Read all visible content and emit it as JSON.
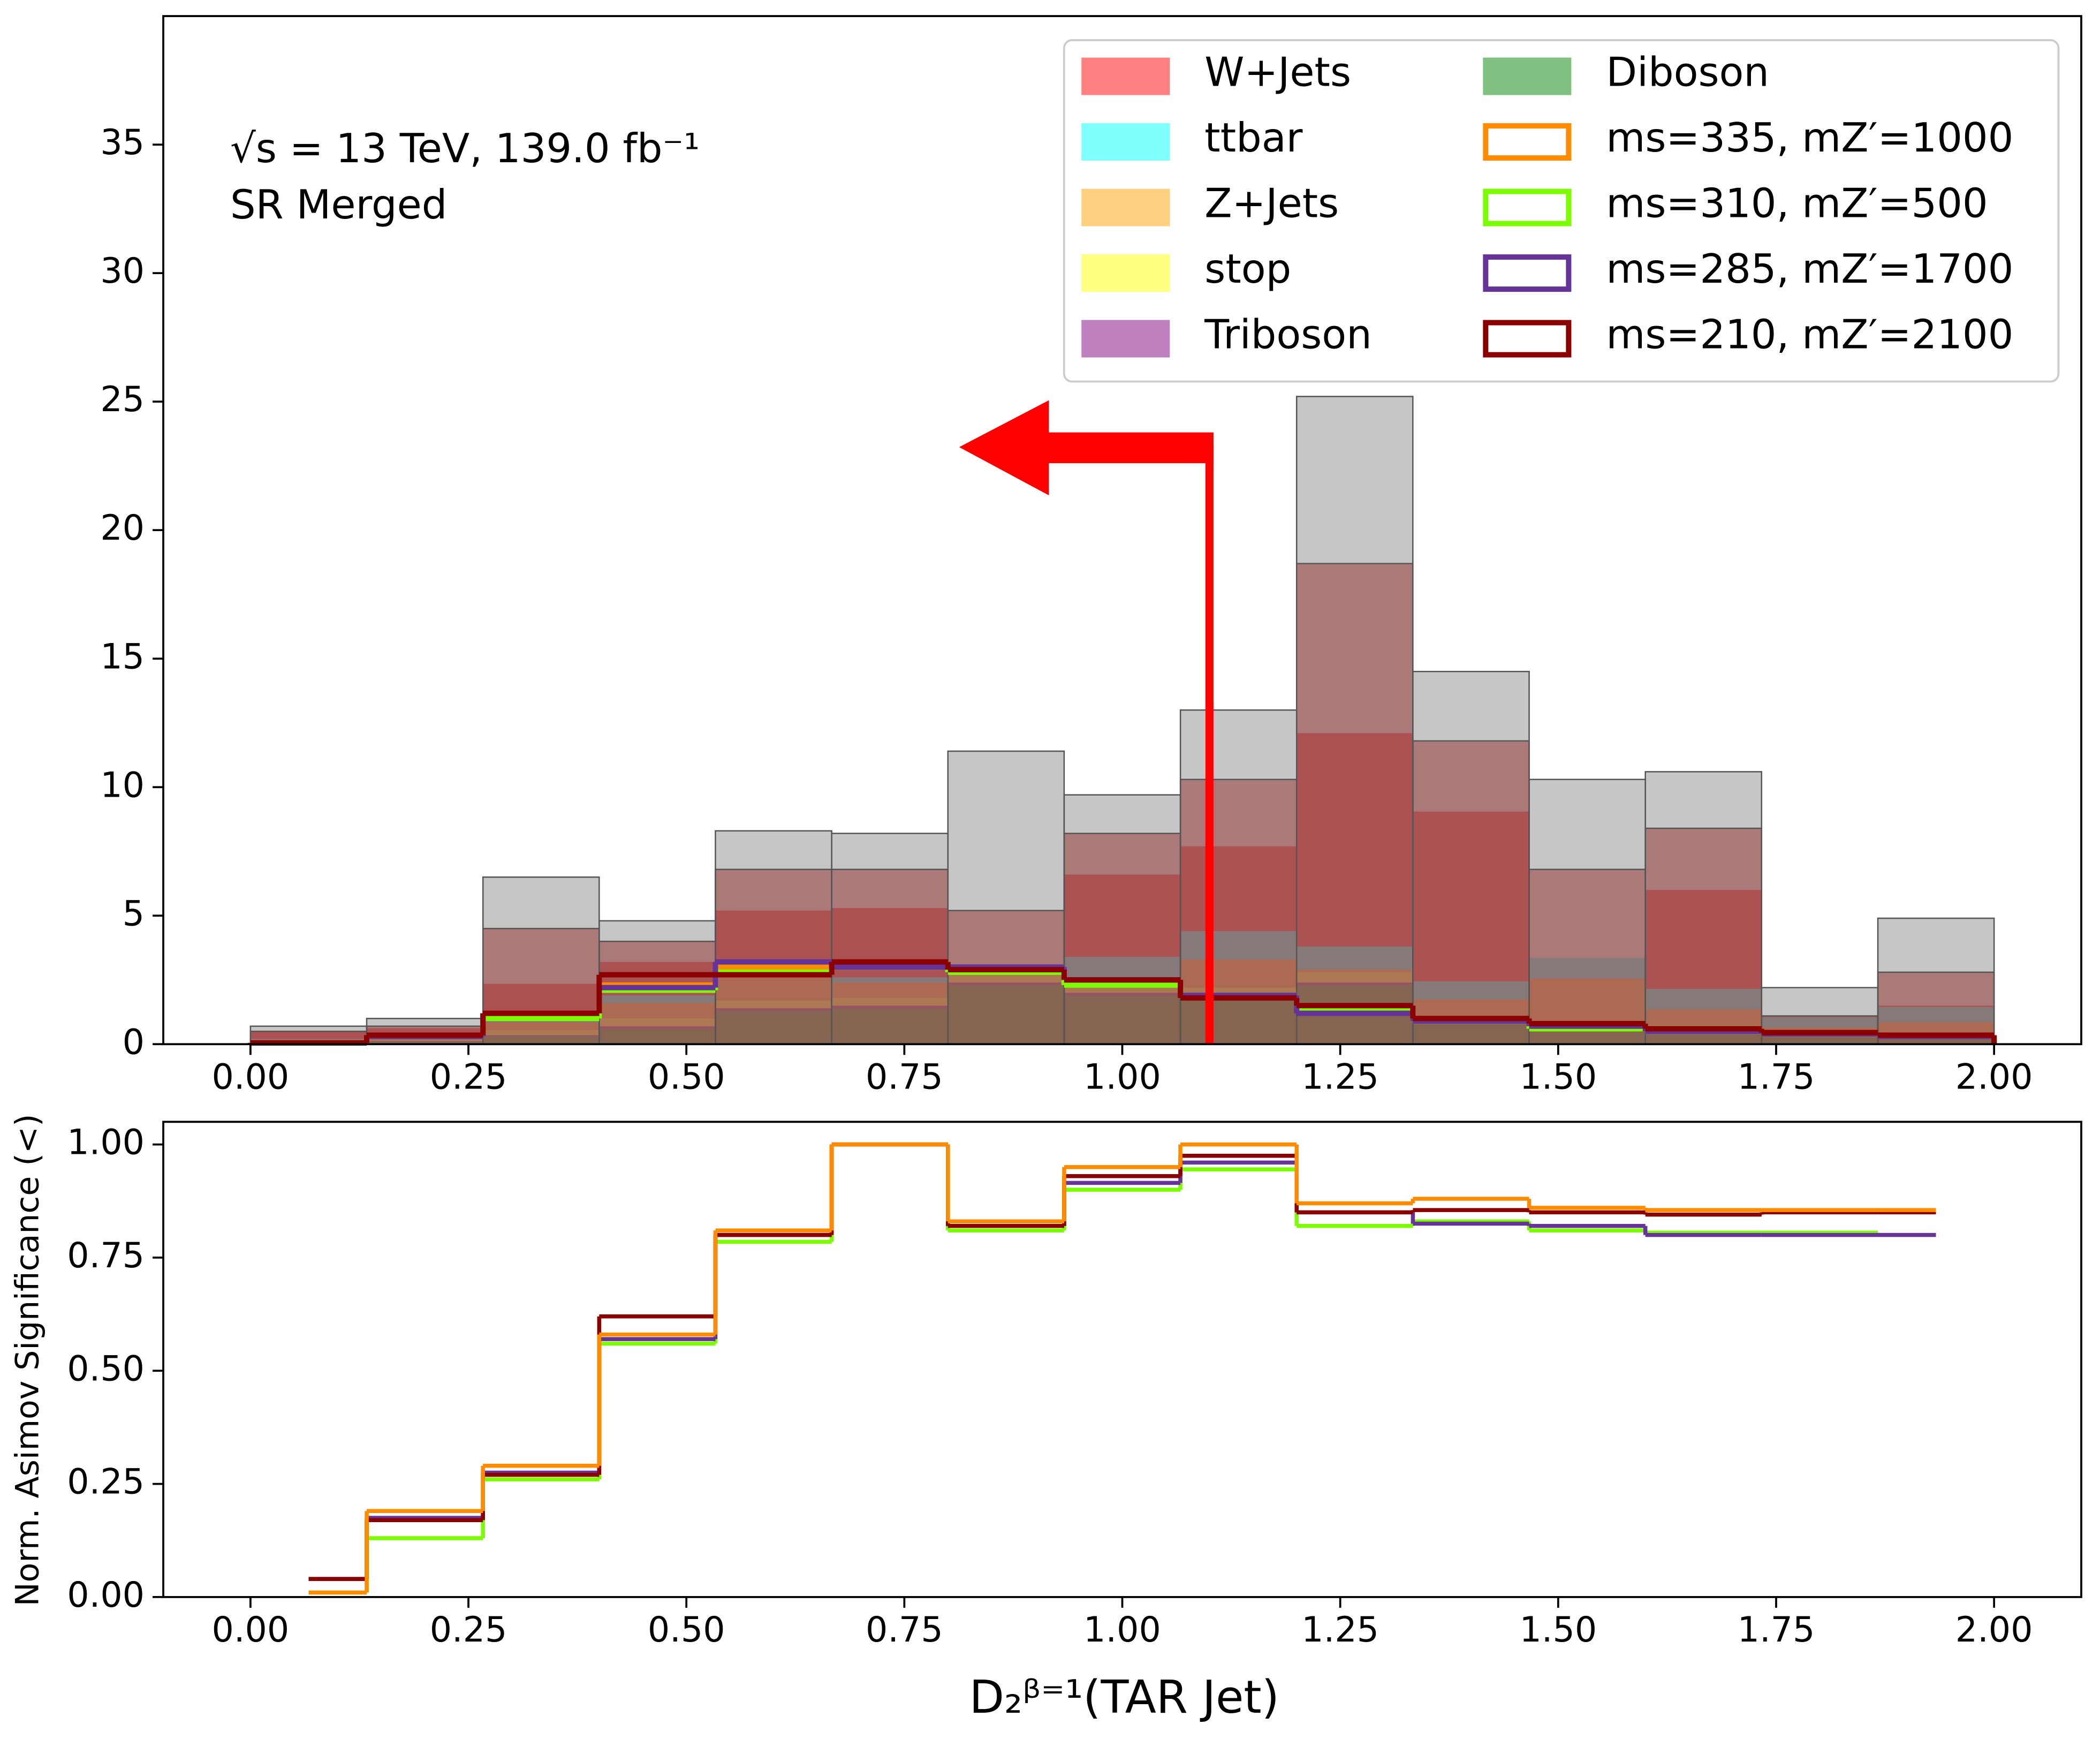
{
  "chart_data": [
    {
      "type": "histogram",
      "annotations": [
        "√s = 13 TeV, 139.0 fb⁻¹",
        "SR Merged"
      ],
      "bins": [
        0,
        0.1333,
        0.2667,
        0.4,
        0.5333,
        0.6667,
        0.8,
        0.9333,
        1.0667,
        1.2,
        1.3333,
        1.4667,
        1.6,
        1.7333,
        1.8667,
        2
      ],
      "xlim": [
        -0.1,
        2.1
      ],
      "ylim": [
        0,
        40
      ],
      "xticks": [
        {
          "value": 0,
          "label": "0.00"
        },
        {
          "value": 0.25,
          "label": "0.25"
        },
        {
          "value": 0.5,
          "label": "0.50"
        },
        {
          "value": 0.75,
          "label": "0.75"
        },
        {
          "value": 1,
          "label": "1.00"
        },
        {
          "value": 1.25,
          "label": "1.25"
        },
        {
          "value": 1.5,
          "label": "1.50"
        },
        {
          "value": 1.75,
          "label": "1.75"
        },
        {
          "value": 2,
          "label": "2.00"
        }
      ],
      "yticks": [
        0,
        5,
        10,
        15,
        20,
        25,
        30,
        35
      ],
      "cut": 1.1,
      "series": [
        {
          "name": "W+Jets",
          "style": "stack",
          "color": "#ff8080",
          "values": [
            0.3,
            0.3,
            1.4,
            1.3,
            2.2,
            2.7,
            0,
            3.2,
            3.3,
            8.3,
            6.6,
            0,
            3.85,
            0.05,
            0.05
          ]
        },
        {
          "name": "ttbar",
          "style": "stack",
          "color": "#80ffff",
          "values": [
            0.05,
            0.05,
            0.1,
            0.3,
            0.3,
            0.2,
            0.1,
            0.8,
            1.1,
            0.9,
            0.7,
            0.8,
            0.8,
            0.4,
            0.6
          ]
        },
        {
          "name": "Z+Jets",
          "style": "stack",
          "color": "#ffd080",
          "values": [
            0.05,
            0.1,
            0.3,
            0.6,
            1.0,
            0.6,
            0.3,
            0.4,
            1.1,
            0.1,
            0.7,
            1.7,
            0.6,
            0.2,
            0.4
          ]
        },
        {
          "name": "stop",
          "style": "stack",
          "color": "#ffff80",
          "values": [
            0.03,
            0.05,
            0.2,
            0.3,
            0.3,
            0.3,
            0.3,
            0.2,
            0.3,
            0.4,
            0.2,
            0.2,
            0.2,
            0.1,
            0.1
          ]
        },
        {
          "name": "Triboson",
          "style": "stack",
          "color": "#bf80bf",
          "values": [
            0.02,
            0.02,
            0.05,
            0.1,
            0.1,
            0.1,
            0.1,
            0.1,
            0.1,
            0.1,
            0.05,
            0.05,
            0.05,
            0.05,
            0.05
          ]
        },
        {
          "name": "Diboson",
          "style": "stack",
          "color": "#80c080",
          "values": [
            0.05,
            0.1,
            0.3,
            0.6,
            1.3,
            1.4,
            2.3,
            1.9,
            1.8,
            2.3,
            0.8,
            0.6,
            0.5,
            0.3,
            0.3
          ]
        },
        {
          "style": "fill",
          "color": "#808080",
          "values": [
            0.7,
            1.0,
            6.5,
            4.8,
            8.3,
            8.2,
            11.4,
            9.7,
            13.0,
            25.2,
            14.5,
            10.3,
            10.6,
            2.2,
            4.9
          ]
        },
        {
          "style": "fill",
          "color": "#8b1a1a",
          "values": [
            0.5,
            0.7,
            4.5,
            4.0,
            6.8,
            6.8,
            5.2,
            8.2,
            10.3,
            18.7,
            11.8,
            6.8,
            8.4,
            1.1,
            2.8
          ]
        },
        {
          "name": "ms=335, mZ′=1000",
          "style": "step",
          "color": "#ff8c00",
          "values": [
            0.05,
            0.3,
            1.1,
            2.3,
            3.0,
            3.1,
            3.0,
            2.4,
            1.9,
            1.4,
            0.9,
            0.7,
            0.5,
            0.4,
            0.3
          ]
        },
        {
          "name": "ms=310, mZ′=500",
          "style": "step",
          "color": "#7cfc00",
          "values": [
            0.05,
            0.3,
            1.0,
            2.1,
            2.8,
            3.0,
            2.8,
            2.3,
            1.9,
            1.4,
            0.9,
            0.6,
            0.5,
            0.4,
            0.3
          ]
        },
        {
          "name": "ms=285, mZ′=1700",
          "style": "step",
          "color": "#663399",
          "values": [
            0.05,
            0.3,
            1.2,
            2.2,
            3.2,
            3.0,
            3.0,
            2.5,
            1.9,
            1.2,
            0.9,
            0.7,
            0.5,
            0.4,
            0.3
          ]
        },
        {
          "name": "ms=210, mZ′=2100",
          "style": "step",
          "color": "#8b0000",
          "values": [
            0.05,
            0.35,
            1.2,
            2.7,
            2.7,
            3.2,
            2.9,
            2.5,
            1.8,
            1.5,
            1.0,
            0.8,
            0.6,
            0.45,
            0.35
          ]
        }
      ]
    },
    {
      "type": "line",
      "xlabel": "D₂ᵝ⁼¹(TAR Jet)",
      "ylabel": "Norm. Asimov Significance (<)",
      "x": [
        0.0667,
        0.2,
        0.3333,
        0.4667,
        0.6,
        0.7333,
        0.8667,
        1.0,
        1.1333,
        1.2667,
        1.4,
        1.5333,
        1.6667,
        1.8,
        1.9333
      ],
      "xlim": [
        -0.1,
        2.1
      ],
      "ylim": [
        0,
        1.05
      ],
      "xticks": [
        {
          "value": 0,
          "label": "0.00"
        },
        {
          "value": 0.25,
          "label": "0.25"
        },
        {
          "value": 0.5,
          "label": "0.50"
        },
        {
          "value": 0.75,
          "label": "0.75"
        },
        {
          "value": 1,
          "label": "1.00"
        },
        {
          "value": 1.25,
          "label": "1.25"
        },
        {
          "value": 1.5,
          "label": "1.50"
        },
        {
          "value": 1.75,
          "label": "1.75"
        },
        {
          "value": 2,
          "label": "2.00"
        }
      ],
      "yticks": [
        {
          "value": 0,
          "label": "0.00"
        },
        {
          "value": 0.25,
          "label": "0.25"
        },
        {
          "value": 0.5,
          "label": "0.50"
        },
        {
          "value": 0.75,
          "label": "0.75"
        },
        {
          "value": 1,
          "label": "1.00"
        }
      ],
      "series": [
        {
          "color": "#7cfc00",
          "values": [
            0.01,
            0.13,
            0.26,
            0.56,
            0.785,
            1.0,
            0.81,
            0.9,
            0.945,
            0.82,
            0.83,
            0.81,
            0.805,
            0.805,
            0.8
          ]
        },
        {
          "color": "#663399",
          "values": [
            0.04,
            0.175,
            0.275,
            0.57,
            0.8,
            1.0,
            0.82,
            0.915,
            0.96,
            0.85,
            0.825,
            0.82,
            0.8,
            0.8,
            0.8
          ]
        },
        {
          "color": "#8b0000",
          "values": [
            0.04,
            0.17,
            0.27,
            0.62,
            0.8,
            1.0,
            0.82,
            0.93,
            0.975,
            0.85,
            0.855,
            0.85,
            0.845,
            0.85,
            0.85
          ]
        },
        {
          "color": "#ff8c00",
          "values": [
            0.01,
            0.19,
            0.29,
            0.58,
            0.81,
            1.0,
            0.83,
            0.95,
            1.0,
            0.87,
            0.88,
            0.86,
            0.855,
            0.855,
            0.855
          ]
        }
      ]
    }
  ]
}
